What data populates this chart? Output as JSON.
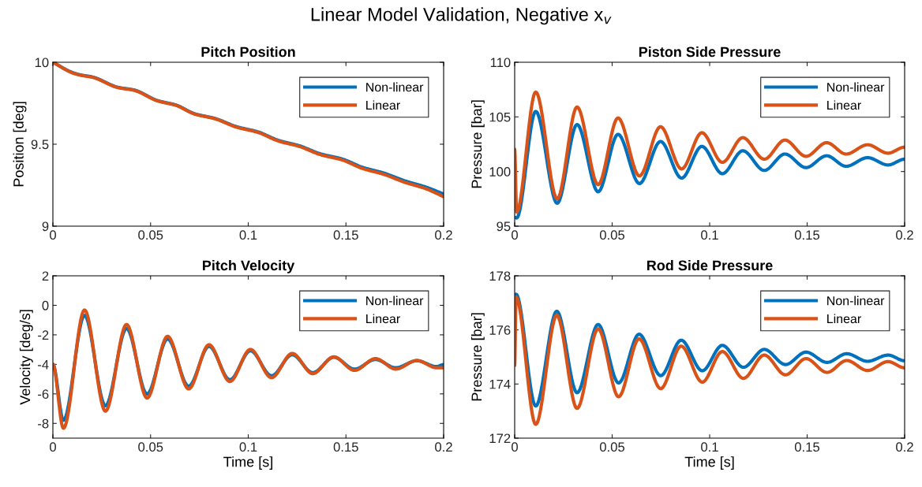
{
  "chart_data": [
    {
      "type": "line",
      "title": "Pitch Position",
      "ylabel": "Position [deg]",
      "xlim": [
        0,
        0.2
      ],
      "xticks": [
        0,
        0.05,
        0.1,
        0.15,
        0.2
      ],
      "ylim": [
        9,
        10
      ],
      "yticks": [
        9,
        9.5,
        10
      ],
      "legend": "top right",
      "grid": false,
      "marker": "none",
      "line_style": "solid",
      "annotations": [
        "Linear Model Validation, Negative x$_{v}$"
      ],
      "series": [
        {
          "name": "Non-linear",
          "color": "#0072bd",
          "x": [
            0,
            0.0105,
            0.0145,
            0.02,
            0.0334,
            0.0415,
            0.0536,
            0.063,
            0.0725,
            0.083,
            0.094,
            0.105,
            0.1155,
            0.126,
            0.137,
            0.148,
            0.1587,
            0.1694,
            0.18,
            0.191,
            0.2
          ],
          "values": [
            10,
            9.935,
            9.922,
            9.911,
            9.847,
            9.831,
            9.766,
            9.739,
            9.686,
            9.657,
            9.607,
            9.575,
            9.523,
            9.491,
            9.441,
            9.41,
            9.358,
            9.324,
            9.277,
            9.238,
            9.196
          ]
        },
        {
          "name": "Linear",
          "color": "#d95319",
          "x": [
            0,
            0.0105,
            0.0145,
            0.02,
            0.0334,
            0.0415,
            0.0536,
            0.063,
            0.0725,
            0.083,
            0.094,
            0.105,
            0.1155,
            0.126,
            0.137,
            0.148,
            0.1587,
            0.1694,
            0.18,
            0.191,
            0.2
          ],
          "values": [
            10,
            9.933,
            9.92,
            9.909,
            9.845,
            9.829,
            9.764,
            9.737,
            9.684,
            9.655,
            9.604,
            9.572,
            9.519,
            9.487,
            9.436,
            9.404,
            9.351,
            9.316,
            9.268,
            9.228,
            9.18
          ]
        }
      ]
    },
    {
      "type": "line",
      "title": "Piston Side Pressure",
      "ylabel": "Pressure [bar]",
      "xlim": [
        0,
        0.2
      ],
      "xticks": [
        0,
        0.05,
        0.1,
        0.15,
        0.2
      ],
      "ylim": [
        95,
        110
      ],
      "yticks": [
        95,
        100,
        105,
        110
      ],
      "legend": "top right",
      "grid": false,
      "marker": "none",
      "line_style": "solid",
      "series": [
        {
          "name": "Non-linear",
          "color": "#0072bd",
          "x": [
            0,
            0.001,
            0.0108,
            0.0218,
            0.032,
            0.0428,
            0.053,
            0.064,
            0.0748,
            0.0856,
            0.096,
            0.1065,
            0.117,
            0.128,
            0.1386,
            0.1494,
            0.16,
            0.17,
            0.181,
            0.1915,
            0.2
          ],
          "values": [
            95.8,
            95.75,
            105.5,
            97.1,
            104.3,
            98.15,
            103.4,
            98.9,
            102.75,
            99.4,
            102.3,
            99.8,
            101.9,
            100.1,
            101.6,
            100.36,
            101.44,
            100.48,
            101.27,
            100.6,
            101.13
          ]
        },
        {
          "name": "Linear",
          "color": "#d95319",
          "x": [
            0,
            0.001,
            0.0108,
            0.0218,
            0.032,
            0.0428,
            0.053,
            0.064,
            0.0748,
            0.0856,
            0.096,
            0.1065,
            0.117,
            0.128,
            0.1386,
            0.1494,
            0.16,
            0.17,
            0.181,
            0.1915,
            0.2
          ],
          "values": [
            102.0,
            96.3,
            107.27,
            97.5,
            105.9,
            98.8,
            104.9,
            99.6,
            104.1,
            100.24,
            103.55,
            100.84,
            103.1,
            101.13,
            102.88,
            101.39,
            102.64,
            101.6,
            102.45,
            101.68,
            102.23
          ]
        }
      ]
    },
    {
      "type": "line",
      "title": "Pitch Velocity",
      "xlabel": "Time [s]",
      "ylabel": "Velocity [deg/s]",
      "xlim": [
        0,
        0.2
      ],
      "xticks": [
        0,
        0.05,
        0.1,
        0.15,
        0.2
      ],
      "ylim": [
        -9,
        2
      ],
      "yticks": [
        -8,
        -6,
        -4,
        -2,
        0,
        2
      ],
      "legend": "top right",
      "grid": false,
      "marker": "none",
      "line_style": "solid",
      "series": [
        {
          "name": "Non-linear",
          "color": "#0072bd",
          "x": [
            0,
            0.0054,
            0.0162,
            0.0269,
            0.0377,
            0.0482,
            0.0587,
            0.0695,
            0.0799,
            0.0906,
            0.1011,
            0.1119,
            0.1225,
            0.133,
            0.1438,
            0.1544,
            0.1651,
            0.1755,
            0.1863,
            0.1964,
            0.2
          ],
          "values": [
            -4.0,
            -7.79,
            -0.68,
            -6.81,
            -1.57,
            -6.01,
            -2.28,
            -5.48,
            -2.78,
            -5.04,
            -3.08,
            -4.77,
            -3.35,
            -4.56,
            -3.52,
            -4.32,
            -3.67,
            -4.23,
            -3.75,
            -4.15,
            -4.02
          ]
        },
        {
          "name": "Linear",
          "color": "#d95319",
          "x": [
            0,
            0.0054,
            0.0162,
            0.0269,
            0.0377,
            0.0482,
            0.0587,
            0.0695,
            0.0799,
            0.0906,
            0.1011,
            0.1119,
            0.1225,
            0.133,
            0.1438,
            0.1544,
            0.1651,
            0.1755,
            0.1863,
            0.1964,
            0.2
          ],
          "values": [
            -4.0,
            -8.33,
            -0.32,
            -7.17,
            -1.3,
            -6.28,
            -2.1,
            -5.66,
            -2.67,
            -5.16,
            -2.99,
            -4.9,
            -3.26,
            -4.63,
            -3.49,
            -4.41,
            -3.61,
            -4.32,
            -3.74,
            -4.23,
            -4.23
          ]
        }
      ]
    },
    {
      "type": "line",
      "title": "Rod Side Pressure",
      "xlabel": "Time [s]",
      "ylabel": "Pressure [bar]",
      "xlim": [
        0,
        0.2
      ],
      "xticks": [
        0,
        0.05,
        0.1,
        0.15,
        0.2
      ],
      "ylim": [
        172,
        178
      ],
      "yticks": [
        172,
        174,
        176,
        178
      ],
      "legend": "top right",
      "grid": false,
      "marker": "none",
      "line_style": "solid",
      "series": [
        {
          "name": "Non-linear",
          "color": "#0072bd",
          "x": [
            0,
            0.0007,
            0.0108,
            0.0216,
            0.032,
            0.0428,
            0.0533,
            0.0638,
            0.0749,
            0.0854,
            0.0962,
            0.1065,
            0.1173,
            0.128,
            0.1389,
            0.1494,
            0.1602,
            0.1703,
            0.181,
            0.1915,
            0.2
          ],
          "values": [
            177.2,
            177.32,
            173.19,
            176.69,
            173.68,
            176.2,
            174.04,
            175.84,
            174.31,
            175.62,
            174.49,
            175.43,
            174.62,
            175.28,
            174.72,
            175.18,
            174.8,
            175.12,
            174.84,
            175.07,
            174.86
          ]
        },
        {
          "name": "Linear",
          "color": "#d95319",
          "x": [
            0,
            0.0007,
            0.0108,
            0.0216,
            0.032,
            0.0428,
            0.0533,
            0.0638,
            0.0749,
            0.0854,
            0.0962,
            0.1065,
            0.1173,
            0.128,
            0.1389,
            0.1494,
            0.1602,
            0.1703,
            0.181,
            0.1915,
            0.2
          ],
          "values": [
            174.7,
            177.22,
            172.51,
            176.54,
            173.1,
            176.04,
            173.53,
            175.67,
            173.83,
            175.4,
            174.07,
            175.2,
            174.21,
            175.07,
            174.34,
            174.94,
            174.43,
            174.87,
            174.5,
            174.83,
            174.6
          ]
        }
      ]
    }
  ]
}
